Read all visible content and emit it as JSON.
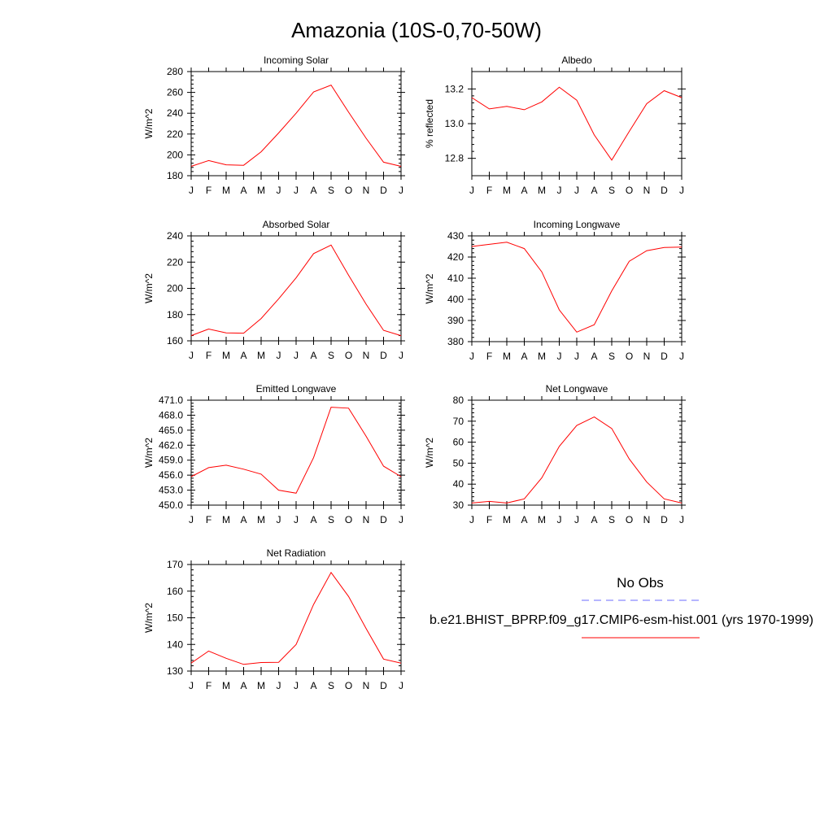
{
  "figure": {
    "title": "Amazonia (10S-0,70-50W)"
  },
  "legend": {
    "obs_label": "No Obs",
    "obs_color": "#6b6bff",
    "model_label": "b.e21.BHIST_BPRP.f09_g17.CMIP6-esm-hist.001 (yrs 1970-1999)",
    "model_color": "#ff0000"
  },
  "chart_data": [
    {
      "type": "line",
      "title": "Incoming Solar",
      "ylabel": "W/m^2",
      "x": [
        "J",
        "F",
        "M",
        "A",
        "M",
        "J",
        "J",
        "A",
        "S",
        "O",
        "N",
        "D",
        "J"
      ],
      "ylim": [
        180,
        280
      ],
      "yticks": [
        "180",
        "200",
        "220",
        "240",
        "260",
        "280"
      ],
      "series": [
        {
          "values": [
            189,
            194.5,
            190.5,
            190,
            203,
            221,
            240,
            260.5,
            267,
            241,
            216,
            193,
            189
          ]
        }
      ]
    },
    {
      "type": "line",
      "title": "Albedo",
      "ylabel": "% reflected",
      "x": [
        "J",
        "F",
        "M",
        "A",
        "M",
        "J",
        "J",
        "A",
        "S",
        "O",
        "N",
        "D",
        "J"
      ],
      "ylim": [
        12.7,
        13.3
      ],
      "yticks": [
        "12.8",
        "13.0",
        "13.2"
      ],
      "series": [
        {
          "values": [
            13.15,
            13.085,
            13.1,
            13.08,
            13.125,
            13.21,
            13.135,
            12.935,
            12.79,
            12.955,
            13.115,
            13.19,
            13.15
          ]
        }
      ]
    },
    {
      "type": "line",
      "title": "Absorbed Solar",
      "ylabel": "W/m^2",
      "x": [
        "J",
        "F",
        "M",
        "A",
        "M",
        "J",
        "J",
        "A",
        "S",
        "O",
        "N",
        "D",
        "J"
      ],
      "ylim": [
        160,
        240
      ],
      "yticks": [
        "160",
        "180",
        "200",
        "220",
        "240"
      ],
      "series": [
        {
          "values": [
            164,
            169,
            166,
            165.8,
            177,
            192,
            208,
            226.5,
            233,
            210,
            188,
            168,
            164
          ]
        }
      ]
    },
    {
      "type": "line",
      "title": "Incoming Longwave",
      "ylabel": "W/m^2",
      "x": [
        "J",
        "F",
        "M",
        "A",
        "M",
        "J",
        "J",
        "A",
        "S",
        "O",
        "N",
        "D",
        "J"
      ],
      "ylim": [
        380,
        430
      ],
      "yticks": [
        "380",
        "390",
        "400",
        "410",
        "420",
        "430"
      ],
      "series": [
        {
          "values": [
            425,
            426,
            427,
            424,
            413,
            395,
            384.5,
            388,
            404,
            418,
            423,
            424.5,
            424.7
          ]
        }
      ]
    },
    {
      "type": "line",
      "title": "Emitted Longwave",
      "ylabel": "W/m^2",
      "x": [
        "J",
        "F",
        "M",
        "A",
        "M",
        "J",
        "J",
        "A",
        "S",
        "O",
        "N",
        "D",
        "J"
      ],
      "ylim": [
        450,
        471
      ],
      "yticks": [
        "450.0",
        "453.0",
        "456.0",
        "459.0",
        "462.0",
        "465.0",
        "468.0",
        "471.0"
      ],
      "series": [
        {
          "values": [
            455.7,
            457.5,
            458,
            457.2,
            456.2,
            453,
            452.4,
            459.5,
            469.6,
            469.4,
            463.8,
            457.8,
            455.7
          ]
        }
      ]
    },
    {
      "type": "line",
      "title": "Net Longwave",
      "ylabel": "W/m^2",
      "x": [
        "J",
        "F",
        "M",
        "A",
        "M",
        "J",
        "J",
        "A",
        "S",
        "O",
        "N",
        "D",
        "J"
      ],
      "ylim": [
        30,
        80
      ],
      "yticks": [
        "30",
        "40",
        "50",
        "60",
        "70",
        "80"
      ],
      "series": [
        {
          "values": [
            31,
            31.8,
            31,
            33,
            43,
            58,
            68,
            72,
            66.5,
            52,
            41,
            33,
            31
          ]
        }
      ]
    },
    {
      "type": "line",
      "title": "Net Radiation",
      "ylabel": "W/m^2",
      "x": [
        "J",
        "F",
        "M",
        "A",
        "M",
        "J",
        "J",
        "A",
        "S",
        "O",
        "N",
        "D",
        "J"
      ],
      "ylim": [
        130,
        170
      ],
      "yticks": [
        "130",
        "140",
        "150",
        "160",
        "170"
      ],
      "series": [
        {
          "values": [
            133,
            137.5,
            134.8,
            132.5,
            133.2,
            133.3,
            140,
            155,
            167,
            158,
            146,
            134.5,
            133
          ]
        }
      ]
    }
  ]
}
